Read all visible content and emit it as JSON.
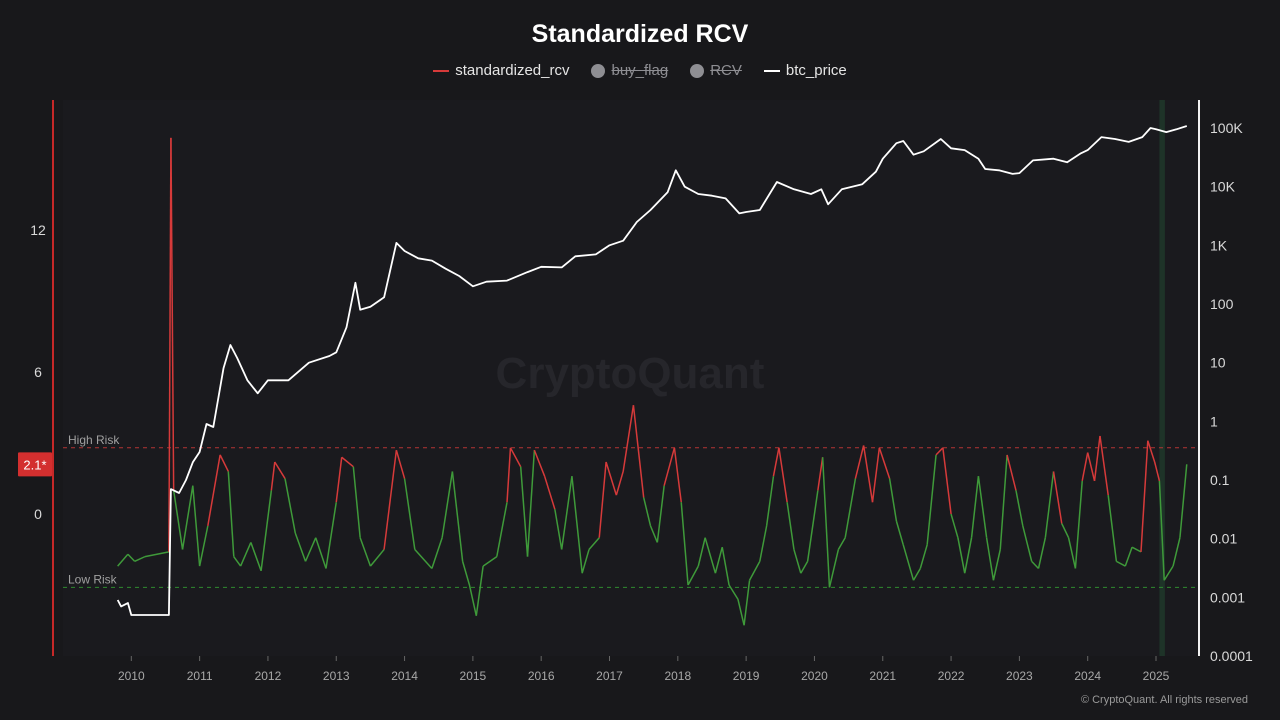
{
  "chart_data": {
    "type": "line",
    "title": "Standardized RCV",
    "legend": [
      {
        "name": "standardized_rcv",
        "color": "#d63a3a",
        "marker": "line",
        "hidden": false
      },
      {
        "name": "buy_flag",
        "color": "#8e8e93",
        "marker": "dot",
        "hidden": true
      },
      {
        "name": "RCV",
        "color": "#8e8e93",
        "marker": "dot",
        "hidden": true
      },
      {
        "name": "btc_price",
        "color": "#ffffff",
        "marker": "line",
        "hidden": false
      }
    ],
    "legend_position": "top-center",
    "x_ticks": [
      "2010",
      "2011",
      "2012",
      "2013",
      "2014",
      "2015",
      "2016",
      "2017",
      "2018",
      "2019",
      "2020",
      "2021",
      "2022",
      "2023",
      "2024",
      "2025"
    ],
    "x_range": [
      2009.0,
      2025.6
    ],
    "y_left": {
      "range": [
        -6,
        17.5
      ],
      "ticks": [
        0,
        6,
        12
      ],
      "current_value_label": "2.1*",
      "current_value": 2.1
    },
    "y_right": {
      "scale": "log",
      "range": [
        0.0001,
        300000
      ],
      "ticks": [
        "0.0001",
        "0.001",
        "0.01",
        "0.1",
        "1",
        "10",
        "100",
        "1K",
        "10K",
        "100K"
      ],
      "tick_values": [
        0.0001,
        0.001,
        0.01,
        0.1,
        1,
        10,
        100,
        1000,
        10000,
        100000
      ]
    },
    "thresholds": [
      {
        "label": "High Risk",
        "value": 2.8,
        "color": "#b33434"
      },
      {
        "label": "Low Risk",
        "value": -3.1,
        "color": "#2f8a2f"
      }
    ],
    "high_color": "#d63a3a",
    "low_color": "#3f9a3a",
    "series": [
      {
        "name": "standardized_rcv",
        "points": [
          [
            2009.8,
            -2.2
          ],
          [
            2009.95,
            -1.7
          ],
          [
            2010.05,
            -2.0
          ],
          [
            2010.2,
            -1.8
          ],
          [
            2010.55,
            -1.6
          ],
          [
            2010.58,
            15.9
          ],
          [
            2010.62,
            1.0
          ],
          [
            2010.75,
            -1.5
          ],
          [
            2010.9,
            1.2
          ],
          [
            2011.0,
            -2.2
          ],
          [
            2011.12,
            -0.5
          ],
          [
            2011.3,
            2.5
          ],
          [
            2011.42,
            1.8
          ],
          [
            2011.5,
            -1.8
          ],
          [
            2011.6,
            -2.2
          ],
          [
            2011.75,
            -1.2
          ],
          [
            2011.9,
            -2.4
          ],
          [
            2012.05,
            1.0
          ],
          [
            2012.1,
            2.2
          ],
          [
            2012.25,
            1.5
          ],
          [
            2012.4,
            -0.8
          ],
          [
            2012.55,
            -2.0
          ],
          [
            2012.7,
            -1.0
          ],
          [
            2012.85,
            -2.3
          ],
          [
            2013.0,
            0.5
          ],
          [
            2013.08,
            2.4
          ],
          [
            2013.25,
            2.0
          ],
          [
            2013.35,
            -1.0
          ],
          [
            2013.5,
            -2.2
          ],
          [
            2013.7,
            -1.5
          ],
          [
            2013.88,
            2.7
          ],
          [
            2014.0,
            1.5
          ],
          [
            2014.15,
            -1.5
          ],
          [
            2014.4,
            -2.3
          ],
          [
            2014.55,
            -1.0
          ],
          [
            2014.7,
            1.8
          ],
          [
            2014.85,
            -2.0
          ],
          [
            2014.95,
            -3.0
          ],
          [
            2015.05,
            -4.3
          ],
          [
            2015.15,
            -2.2
          ],
          [
            2015.35,
            -1.8
          ],
          [
            2015.5,
            0.5
          ],
          [
            2015.55,
            2.8
          ],
          [
            2015.7,
            2.0
          ],
          [
            2015.8,
            -1.8
          ],
          [
            2015.9,
            2.7
          ],
          [
            2016.05,
            1.6
          ],
          [
            2016.2,
            0.2
          ],
          [
            2016.3,
            -1.5
          ],
          [
            2016.45,
            1.6
          ],
          [
            2016.6,
            -2.5
          ],
          [
            2016.7,
            -1.5
          ],
          [
            2016.85,
            -1.0
          ],
          [
            2016.95,
            2.2
          ],
          [
            2017.1,
            0.8
          ],
          [
            2017.2,
            1.8
          ],
          [
            2017.35,
            4.6
          ],
          [
            2017.5,
            0.7
          ],
          [
            2017.6,
            -0.5
          ],
          [
            2017.7,
            -1.2
          ],
          [
            2017.8,
            1.2
          ],
          [
            2017.95,
            2.8
          ],
          [
            2018.05,
            0.5
          ],
          [
            2018.15,
            -3.0
          ],
          [
            2018.3,
            -2.2
          ],
          [
            2018.4,
            -1.0
          ],
          [
            2018.55,
            -2.5
          ],
          [
            2018.65,
            -1.4
          ],
          [
            2018.75,
            -3.0
          ],
          [
            2018.88,
            -3.6
          ],
          [
            2018.97,
            -4.7
          ],
          [
            2019.05,
            -2.8
          ],
          [
            2019.2,
            -2.0
          ],
          [
            2019.3,
            -0.5
          ],
          [
            2019.4,
            1.6
          ],
          [
            2019.48,
            2.8
          ],
          [
            2019.6,
            0.5
          ],
          [
            2019.7,
            -1.5
          ],
          [
            2019.8,
            -2.5
          ],
          [
            2019.9,
            -2.0
          ],
          [
            2020.05,
            1.0
          ],
          [
            2020.12,
            2.4
          ],
          [
            2020.22,
            -3.1
          ],
          [
            2020.35,
            -1.5
          ],
          [
            2020.45,
            -1.0
          ],
          [
            2020.6,
            1.5
          ],
          [
            2020.72,
            2.9
          ],
          [
            2020.85,
            0.5
          ],
          [
            2020.95,
            2.8
          ],
          [
            2021.1,
            1.5
          ],
          [
            2021.2,
            -0.3
          ],
          [
            2021.3,
            -1.3
          ],
          [
            2021.45,
            -2.8
          ],
          [
            2021.55,
            -2.3
          ],
          [
            2021.65,
            -1.3
          ],
          [
            2021.78,
            2.5
          ],
          [
            2021.88,
            2.8
          ],
          [
            2022.0,
            0.0
          ],
          [
            2022.1,
            -1.0
          ],
          [
            2022.2,
            -2.5
          ],
          [
            2022.3,
            -1.0
          ],
          [
            2022.4,
            1.6
          ],
          [
            2022.52,
            -1.0
          ],
          [
            2022.62,
            -2.8
          ],
          [
            2022.72,
            -1.5
          ],
          [
            2022.82,
            2.5
          ],
          [
            2022.95,
            1.0
          ],
          [
            2023.05,
            -0.5
          ],
          [
            2023.18,
            -2.0
          ],
          [
            2023.28,
            -2.3
          ],
          [
            2023.38,
            -1.0
          ],
          [
            2023.5,
            1.8
          ],
          [
            2023.62,
            -0.4
          ],
          [
            2023.72,
            -1.0
          ],
          [
            2023.82,
            -2.3
          ],
          [
            2023.92,
            1.4
          ],
          [
            2024.0,
            2.6
          ],
          [
            2024.1,
            1.4
          ],
          [
            2024.18,
            3.3
          ],
          [
            2024.3,
            0.8
          ],
          [
            2024.42,
            -2.0
          ],
          [
            2024.55,
            -2.2
          ],
          [
            2024.65,
            -1.4
          ],
          [
            2024.78,
            -1.6
          ],
          [
            2024.88,
            3.1
          ],
          [
            2024.98,
            2.2
          ],
          [
            2025.05,
            1.4
          ],
          [
            2025.12,
            -2.8
          ],
          [
            2025.25,
            -2.2
          ],
          [
            2025.35,
            -1.0
          ],
          [
            2025.45,
            2.1
          ]
        ]
      },
      {
        "name": "btc_price",
        "points": [
          [
            2009.8,
            0.0009
          ],
          [
            2009.85,
            0.0007
          ],
          [
            2009.95,
            0.0008
          ],
          [
            2010.0,
            0.0005
          ],
          [
            2010.55,
            0.0005
          ],
          [
            2010.58,
            0.07
          ],
          [
            2010.7,
            0.06
          ],
          [
            2010.8,
            0.1
          ],
          [
            2010.9,
            0.2
          ],
          [
            2011.0,
            0.3
          ],
          [
            2011.1,
            0.9
          ],
          [
            2011.2,
            0.8
          ],
          [
            2011.35,
            8
          ],
          [
            2011.45,
            20
          ],
          [
            2011.55,
            12
          ],
          [
            2011.7,
            5
          ],
          [
            2011.85,
            3
          ],
          [
            2012.0,
            5
          ],
          [
            2012.3,
            5
          ],
          [
            2012.6,
            10
          ],
          [
            2012.9,
            13
          ],
          [
            2013.0,
            15
          ],
          [
            2013.15,
            40
          ],
          [
            2013.28,
            230
          ],
          [
            2013.35,
            80
          ],
          [
            2013.5,
            90
          ],
          [
            2013.7,
            130
          ],
          [
            2013.88,
            1100
          ],
          [
            2014.0,
            800
          ],
          [
            2014.2,
            600
          ],
          [
            2014.4,
            550
          ],
          [
            2014.6,
            400
          ],
          [
            2014.8,
            300
          ],
          [
            2015.0,
            200
          ],
          [
            2015.2,
            240
          ],
          [
            2015.5,
            250
          ],
          [
            2015.8,
            350
          ],
          [
            2016.0,
            430
          ],
          [
            2016.3,
            420
          ],
          [
            2016.5,
            650
          ],
          [
            2016.8,
            700
          ],
          [
            2017.0,
            1000
          ],
          [
            2017.2,
            1200
          ],
          [
            2017.4,
            2500
          ],
          [
            2017.6,
            4000
          ],
          [
            2017.85,
            8000
          ],
          [
            2017.97,
            19000
          ],
          [
            2018.1,
            10000
          ],
          [
            2018.3,
            7500
          ],
          [
            2018.5,
            7000
          ],
          [
            2018.7,
            6300
          ],
          [
            2018.9,
            3500
          ],
          [
            2019.0,
            3700
          ],
          [
            2019.2,
            4000
          ],
          [
            2019.45,
            12000
          ],
          [
            2019.7,
            9000
          ],
          [
            2019.95,
            7500
          ],
          [
            2020.1,
            9000
          ],
          [
            2020.2,
            5000
          ],
          [
            2020.4,
            9000
          ],
          [
            2020.7,
            11000
          ],
          [
            2020.9,
            18000
          ],
          [
            2021.0,
            30000
          ],
          [
            2021.2,
            55000
          ],
          [
            2021.3,
            60000
          ],
          [
            2021.45,
            35000
          ],
          [
            2021.6,
            40000
          ],
          [
            2021.85,
            65000
          ],
          [
            2022.0,
            45000
          ],
          [
            2022.2,
            42000
          ],
          [
            2022.4,
            30000
          ],
          [
            2022.5,
            20000
          ],
          [
            2022.7,
            19000
          ],
          [
            2022.9,
            16500
          ],
          [
            2023.0,
            17000
          ],
          [
            2023.2,
            28000
          ],
          [
            2023.5,
            30000
          ],
          [
            2023.7,
            26000
          ],
          [
            2023.9,
            37000
          ],
          [
            2024.0,
            42000
          ],
          [
            2024.2,
            70000
          ],
          [
            2024.4,
            65000
          ],
          [
            2024.6,
            58000
          ],
          [
            2024.8,
            70000
          ],
          [
            2024.92,
            100000
          ],
          [
            2025.0,
            95000
          ],
          [
            2025.15,
            85000
          ],
          [
            2025.3,
            95000
          ],
          [
            2025.45,
            108000
          ]
        ]
      }
    ]
  },
  "copyright": "© CryptoQuant. All rights reserved"
}
